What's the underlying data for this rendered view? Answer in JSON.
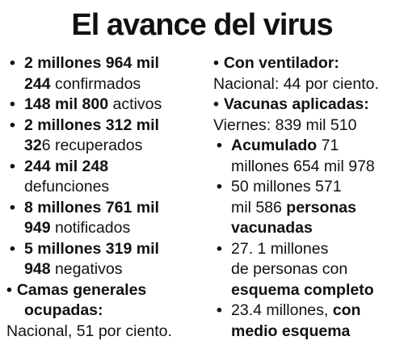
{
  "title": "El avance del virus",
  "left": {
    "confirmados": {
      "bold1": "2 millones 964 mil",
      "bold2": "244",
      "text": " confirmados"
    },
    "activos": {
      "bold": "148 mil 800",
      "text": " activos"
    },
    "recuperados": {
      "bold1": "2 millones 312 mil",
      "bold2": "32",
      "text": "6 recuperados"
    },
    "defunciones": {
      "bold": "244 mil 248",
      "text": "defunciones"
    },
    "notificados": {
      "bold1": "8 millones 761 mil",
      "bold2": "949",
      "text": " notificados"
    },
    "negativos": {
      "bold1": "5 millones 319 mil",
      "bold2": "948",
      "text": " negativos"
    },
    "camas": {
      "bold1": "Camas generales",
      "bold2": "ocupadas:",
      "text": "Nacional, 51 por ciento."
    }
  },
  "right": {
    "ventilador": {
      "bold": "Con ventilador:",
      "text": "Nacional: 44 por ciento."
    },
    "vacunas": {
      "bold": "Vacunas aplicadas:",
      "text": "Viernes: 839 mil 510"
    },
    "acumulado": {
      "bold": "Acumulado",
      "text1": " 71",
      "text2": "millones 654 mil 978"
    },
    "vacunadas": {
      "text1": "50 millones 571",
      "text2": "mil 586 ",
      "bold1": "personas",
      "bold2": "vacunadas"
    },
    "completo": {
      "text1": "27. 1 millones",
      "text2": "de personas con",
      "bold": "esquema completo"
    },
    "medio": {
      "text1": "23.4 millones, ",
      "bold1": "con",
      "bold2": "medio esquema"
    }
  },
  "bullet_char": "•"
}
